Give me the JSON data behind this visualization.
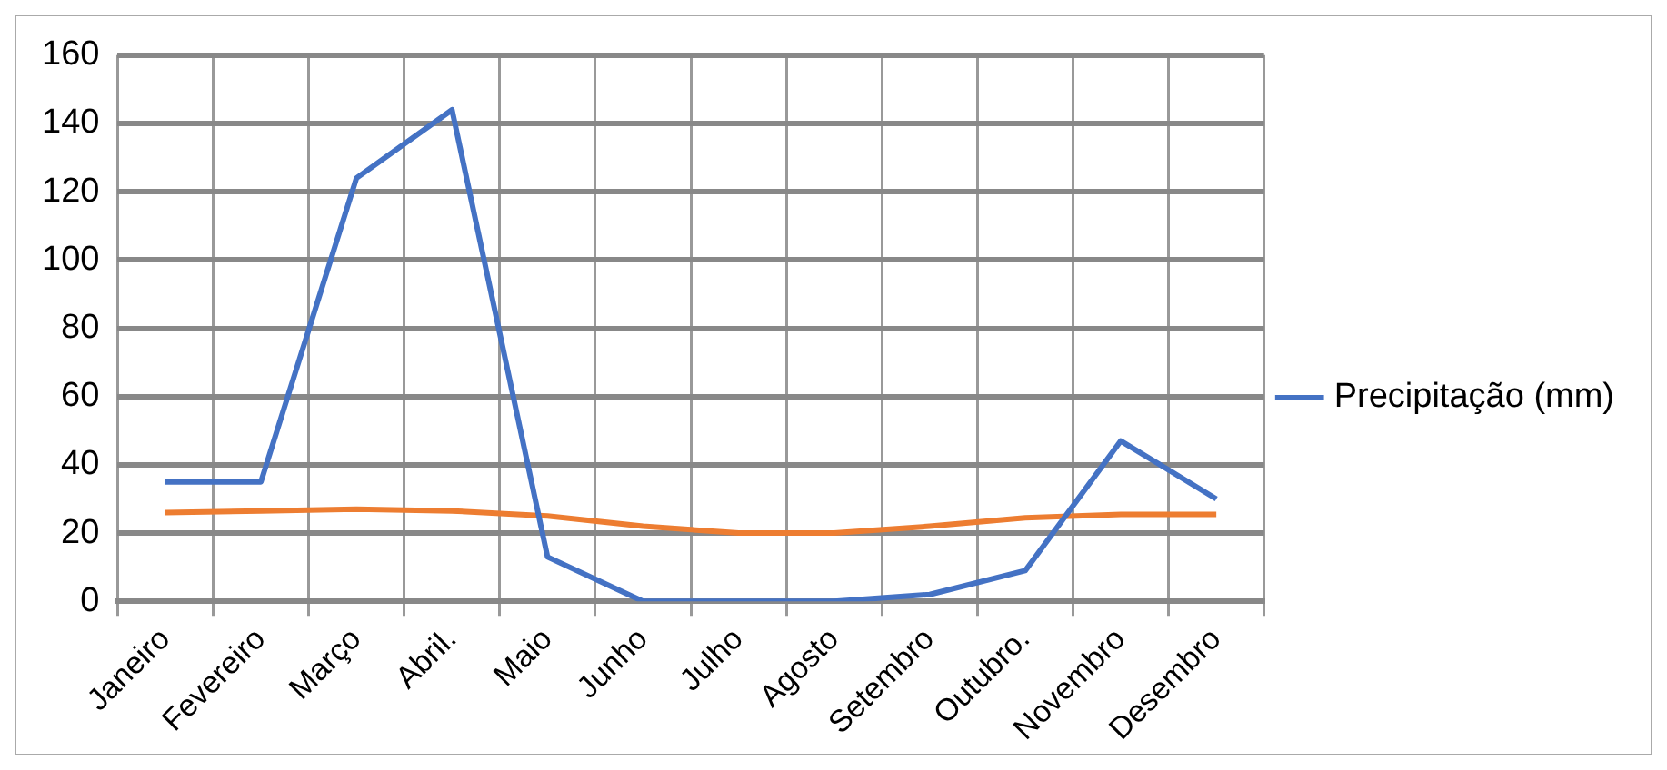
{
  "chart_data": {
    "type": "line",
    "categories": [
      "Janeiro",
      "Fevereiro",
      "Março",
      "Abril.",
      "Maio",
      "Junho",
      "Julho",
      "Agosto",
      "Setembro",
      "Outubro.",
      "Novembro",
      "Desembro"
    ],
    "series": [
      {
        "name": "Precipitação (mm)",
        "color": "#4472c4",
        "values": [
          35,
          35,
          124,
          144,
          13,
          0,
          0,
          0,
          2,
          9,
          47,
          30
        ]
      },
      {
        "color": "#ed7d31",
        "values": [
          26,
          26.5,
          27,
          26.5,
          25,
          22,
          20,
          20,
          22,
          24.5,
          25.5,
          25.5
        ]
      }
    ],
    "ylim": [
      0,
      160
    ],
    "yticks": [
      0,
      20,
      40,
      60,
      80,
      100,
      120,
      140,
      160
    ],
    "grid": true,
    "legend": "right",
    "marker": "none",
    "line_style": "solid"
  }
}
